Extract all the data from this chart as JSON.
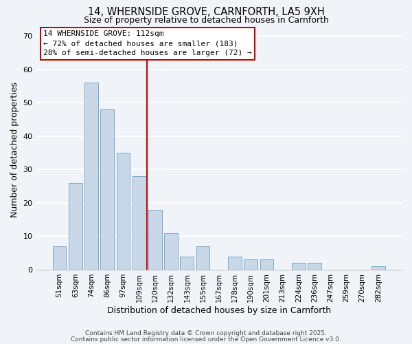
{
  "title": "14, WHERNSIDE GROVE, CARNFORTH, LA5 9XH",
  "subtitle": "Size of property relative to detached houses in Carnforth",
  "xlabel": "Distribution of detached houses by size in Carnforth",
  "ylabel": "Number of detached properties",
  "bar_color": "#c8d8e8",
  "bar_edge_color": "#7aaac8",
  "background_color": "#f0f4f8",
  "grid_color": "#ffffff",
  "categories": [
    "51sqm",
    "63sqm",
    "74sqm",
    "86sqm",
    "97sqm",
    "109sqm",
    "120sqm",
    "132sqm",
    "143sqm",
    "155sqm",
    "167sqm",
    "178sqm",
    "190sqm",
    "201sqm",
    "213sqm",
    "224sqm",
    "236sqm",
    "247sqm",
    "259sqm",
    "270sqm",
    "282sqm"
  ],
  "values": [
    7,
    26,
    56,
    48,
    35,
    28,
    18,
    11,
    4,
    7,
    0,
    4,
    3,
    3,
    0,
    2,
    2,
    0,
    0,
    0,
    1
  ],
  "vline_x": 5.5,
  "vline_color": "#cc0000",
  "annotation_title": "14 WHERNSIDE GROVE: 112sqm",
  "annotation_line1": "← 72% of detached houses are smaller (183)",
  "annotation_line2": "28% of semi-detached houses are larger (72) →",
  "ylim": [
    0,
    72
  ],
  "yticks": [
    0,
    10,
    20,
    30,
    40,
    50,
    60,
    70
  ],
  "footer1": "Contains HM Land Registry data © Crown copyright and database right 2025.",
  "footer2": "Contains public sector information licensed under the Open Government Licence v3.0."
}
